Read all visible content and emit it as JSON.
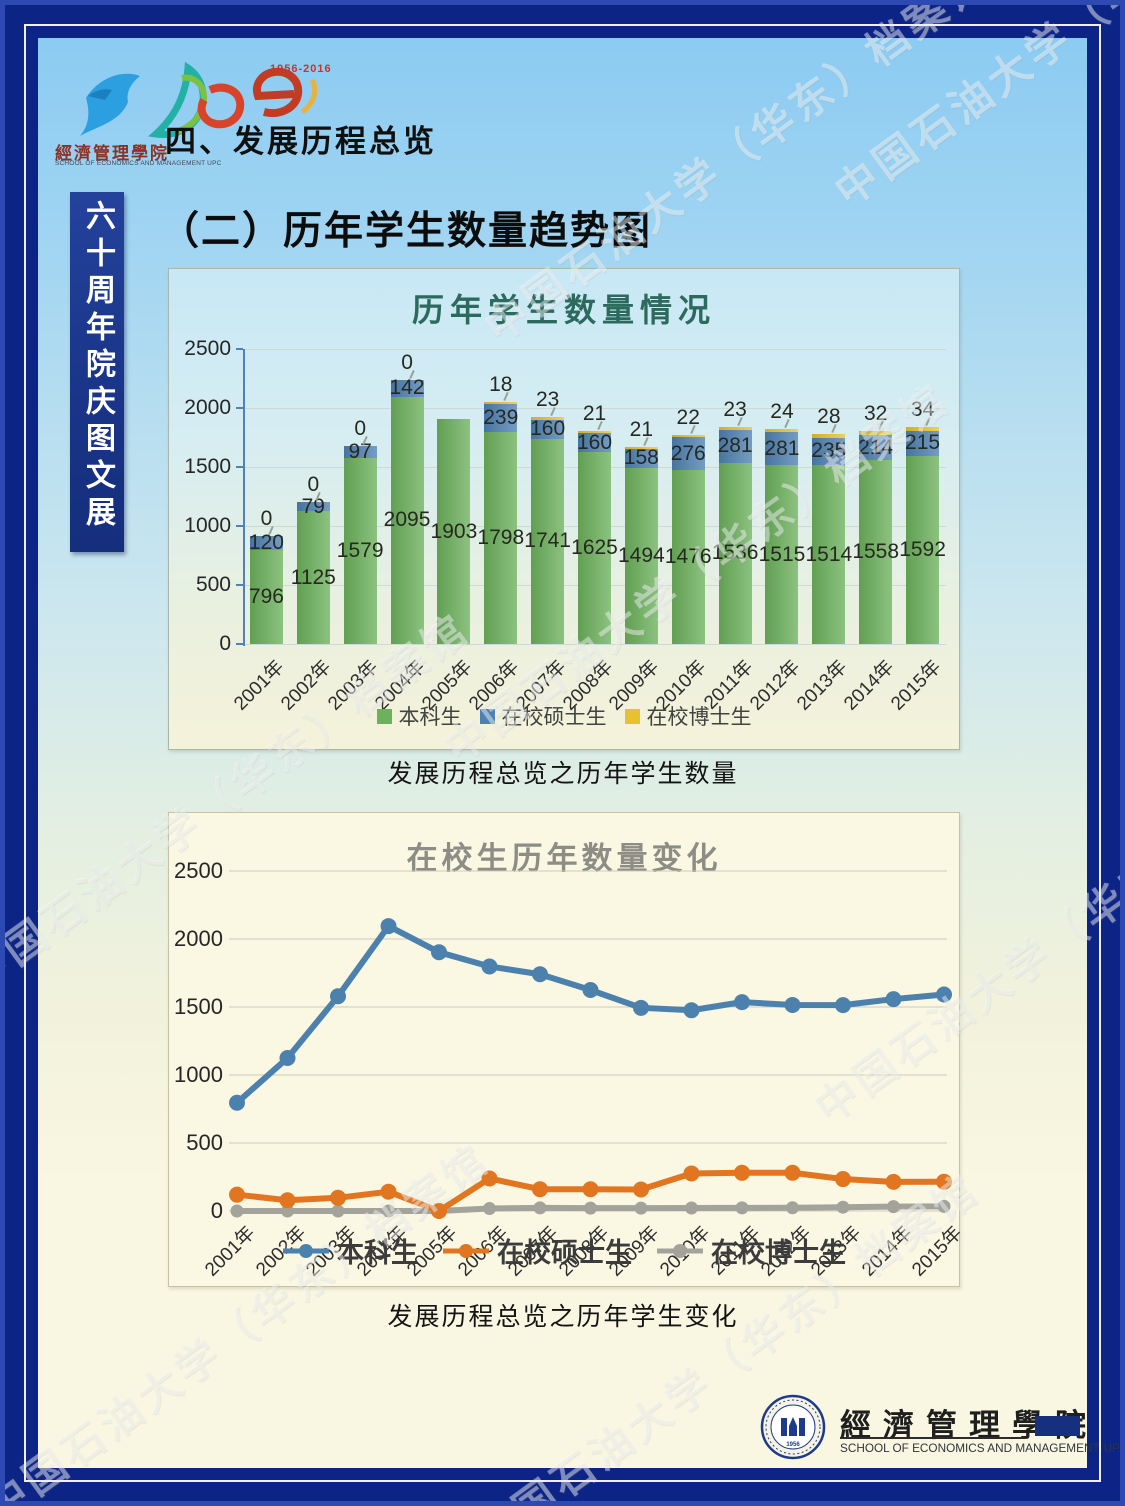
{
  "frame": {
    "watermark_text": "中国石油大学（华东）档案馆"
  },
  "header": {
    "anniversary_logo": {
      "icon": "phoenix-60-logo",
      "years": "1956-2016",
      "school_cn": "經濟管理學院",
      "school_en": "SCHOOL OF ECONOMICS AND MANAGEMENT UPC"
    },
    "section_title": "四、发展历程总览"
  },
  "sidebar": {
    "vertical_banner": "六十周年院庆图文展"
  },
  "main": {
    "subtitle": "（二）历年学生数量趋势图",
    "caption_chart1": "发展历程总览之历年学生数量",
    "caption_chart2": "发展历程总览之历年学生变化"
  },
  "footer": {
    "seal_icon": "school-seal-logo",
    "school_cn": "經濟管理學院",
    "school_en": "SCHOOL OF ECONOMICS AND MANAGEMENT·UPC"
  },
  "chart_data": [
    {
      "type": "bar",
      "stacked": true,
      "title": "历年学生数量情况",
      "title_color": "#2c6a5d",
      "categories": [
        "2001年",
        "2002年",
        "2003年",
        "2004年",
        "2005年",
        "2006年",
        "2007年",
        "2008年",
        "2009年",
        "2010年",
        "2011年",
        "2012年",
        "2013年",
        "2014年",
        "2015年"
      ],
      "series": [
        {
          "name": "本科生",
          "color": "#6cb15c",
          "values": [
            796,
            1125,
            1579,
            2095,
            1903,
            1798,
            1741,
            1625,
            1494,
            1476,
            1536,
            1515,
            1514,
            1558,
            1592
          ]
        },
        {
          "name": "在校硕士生",
          "color": "#4e81b3",
          "values": [
            120,
            79,
            97,
            142,
            null,
            239,
            160,
            160,
            158,
            276,
            281,
            281,
            235,
            214,
            215
          ]
        },
        {
          "name": "在校博士生",
          "color": "#e6c233",
          "values": [
            0,
            0,
            0,
            0,
            null,
            18,
            23,
            21,
            21,
            22,
            23,
            24,
            28,
            32,
            34
          ]
        }
      ],
      "ylim": [
        0,
        2500
      ],
      "yticks": [
        0,
        500,
        1000,
        1500,
        2000,
        2500
      ],
      "grid": true,
      "axis_color": "#4f83b4",
      "legend_position": "bottom"
    },
    {
      "type": "line",
      "title": "在校生历年数量变化",
      "title_color": "#8d8d86",
      "categories": [
        "2001年",
        "2002年",
        "2003年",
        "2004年",
        "2005年",
        "2006年",
        "2007年",
        "2008年",
        "2009年",
        "2010年",
        "2011年",
        "2012年",
        "2013年",
        "2014年",
        "2015年"
      ],
      "series": [
        {
          "name": "本科生",
          "color": "#4d81ad",
          "values": [
            796,
            1125,
            1579,
            2095,
            1903,
            1798,
            1741,
            1625,
            1494,
            1476,
            1536,
            1515,
            1514,
            1558,
            1592
          ]
        },
        {
          "name": "在校硕士生",
          "color": "#e2751f",
          "values": [
            120,
            79,
            97,
            142,
            0,
            239,
            160,
            160,
            158,
            276,
            281,
            281,
            235,
            214,
            215
          ]
        },
        {
          "name": "在校博士生",
          "color": "#a3a39b",
          "values": [
            0,
            0,
            0,
            0,
            0,
            18,
            23,
            21,
            21,
            22,
            23,
            24,
            28,
            32,
            34
          ]
        }
      ],
      "ylim": [
        0,
        2500
      ],
      "yticks": [
        0,
        500,
        1000,
        1500,
        2000,
        2500
      ],
      "grid": true,
      "gridline_color": "#ccccba",
      "legend_position": "bottom"
    }
  ]
}
